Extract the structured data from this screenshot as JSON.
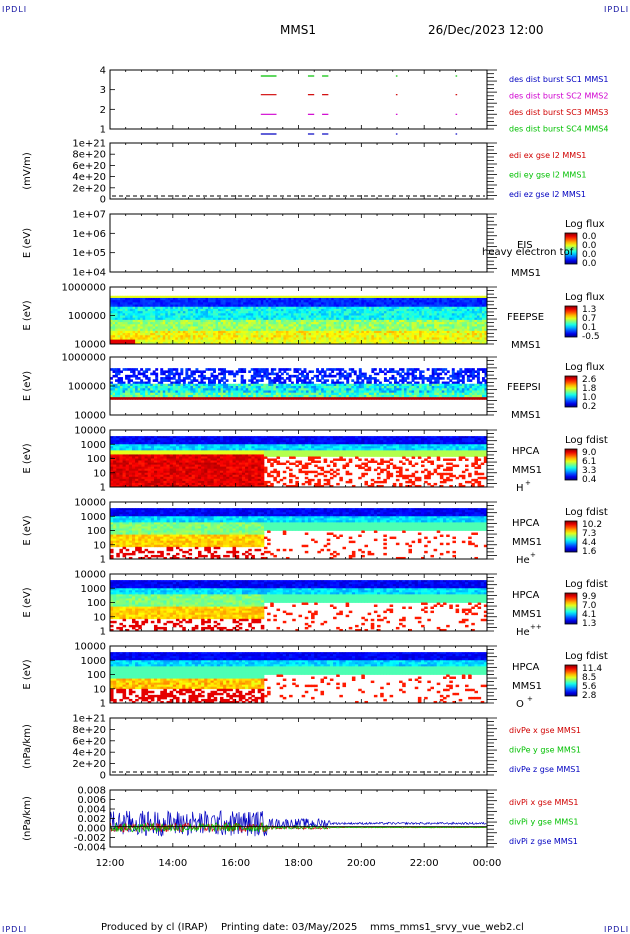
{
  "header": {
    "corner_tl": "IPDLI",
    "corner_tr": "IPDLI",
    "corner_bl": "IPDLI",
    "corner_br": "IPDLI",
    "spacecraft": "MMS1",
    "datetime": "26/Dec/2023 12:00"
  },
  "footer": {
    "produced_by": "Produced by cl (IRAP)",
    "printing_date": "Printing date: 03/May/2025",
    "script_name": "mms_mms1_srvy_vue_web2.cl"
  },
  "colors": {
    "red": "#d00000",
    "green": "#00c000",
    "blue": "#0000c0",
    "magenta": "#d000d0"
  },
  "chart_data": {
    "type": "heatmap",
    "x_axis": {
      "ticks": [
        "12:00",
        "14:00",
        "16:00",
        "18:00",
        "20:00",
        "22:00",
        "00:00"
      ],
      "range_hours": [
        12,
        24
      ]
    },
    "panels": [
      {
        "id": "burst",
        "type": "scatter",
        "yticks": [
          "4",
          "3",
          "2",
          "1"
        ],
        "legend": [
          {
            "text": "des dist burst SC1 MMS1",
            "color": "#0000c0"
          },
          {
            "text": "des dist burst SC2 MMS2",
            "color": "#d000d0"
          },
          {
            "text": "des dist burst SC3 MMS3",
            "color": "#d00000"
          },
          {
            "text": "des dist burst SC4 MMS4",
            "color": "#00c000"
          }
        ],
        "intervals_hours": [
          [
            16.8,
            17.3
          ],
          [
            18.3,
            18.5
          ],
          [
            18.75,
            18.95
          ],
          [
            21.1,
            21.15
          ],
          [
            23.0,
            23.05
          ]
        ]
      },
      {
        "id": "edi",
        "type": "line",
        "ylabel": "(mV/m)",
        "yticks": [
          "1e+21",
          "8e+20",
          "6e+20",
          "4e+20",
          "2e+20",
          "0"
        ],
        "legend": [
          {
            "text": "edi ex gse l2 MMS1",
            "color": "#d00000"
          },
          {
            "text": "edi ey gse l2 MMS1",
            "color": "#00c000"
          },
          {
            "text": "edi ez gse l2 MMS1",
            "color": "#0000c0"
          }
        ]
      },
      {
        "id": "eis",
        "type": "heatmap",
        "ylabel": "E (eV)",
        "yticks": [
          "1e+07",
          "1e+06",
          "1e+05",
          "1e+04"
        ],
        "labels": [
          "EIS",
          "heavy electron tof",
          "MMS1"
        ],
        "cbar_title": "Log flux",
        "cbar_ticks": [
          "0.0",
          "0.0",
          "0.0",
          "0.0"
        ]
      },
      {
        "id": "feepse",
        "type": "heatmap",
        "ylabel": "E (eV)",
        "yticks": [
          "1000000",
          "100000",
          "10000"
        ],
        "labels": [
          "FEEPSE",
          "MMS1"
        ],
        "cbar_title": "Log flux",
        "cbar_ticks": [
          "1.3",
          "0.7",
          "0.1",
          "-0.5"
        ]
      },
      {
        "id": "feepsi",
        "type": "heatmap",
        "ylabel": "E (eV)",
        "yticks": [
          "1000000",
          "100000",
          "10000"
        ],
        "labels": [
          "FEEPSI",
          "MMS1"
        ],
        "cbar_title": "Log flux",
        "cbar_ticks": [
          "2.6",
          "1.8",
          "1.0",
          "0.2"
        ]
      },
      {
        "id": "hpca_h",
        "type": "heatmap",
        "ylabel": "E (eV)",
        "yticks": [
          "10000",
          "1000",
          "100",
          "10",
          "1"
        ],
        "labels": [
          "HPCA",
          "MMS1",
          "H",
          "+"
        ],
        "cbar_title": "Log fdist",
        "cbar_ticks": [
          "9.0",
          "6.1",
          "3.3",
          "0.4"
        ]
      },
      {
        "id": "hpca_he",
        "type": "heatmap",
        "ylabel": "E (eV)",
        "yticks": [
          "10000",
          "1000",
          "100",
          "10",
          "1"
        ],
        "labels": [
          "HPCA",
          "MMS1",
          "He",
          "+"
        ],
        "cbar_title": "Log fdist",
        "cbar_ticks": [
          "10.2",
          "7.3",
          "4.4",
          "1.6"
        ]
      },
      {
        "id": "hpca_hepp",
        "type": "heatmap",
        "ylabel": "E (eV)",
        "yticks": [
          "10000",
          "1000",
          "100",
          "10",
          "1"
        ],
        "labels": [
          "HPCA",
          "MMS1",
          "He",
          "++"
        ],
        "cbar_title": "Log fdist",
        "cbar_ticks": [
          "9.9",
          "7.0",
          "4.1",
          "1.3"
        ]
      },
      {
        "id": "hpca_o",
        "type": "heatmap",
        "ylabel": "E (eV)",
        "yticks": [
          "10000",
          "1000",
          "100",
          "10",
          "1"
        ],
        "labels": [
          "HPCA",
          "MMS1",
          "O",
          "+"
        ],
        "cbar_title": "Log fdist",
        "cbar_ticks": [
          "11.4",
          "8.5",
          "5.6",
          "2.8"
        ]
      },
      {
        "id": "divpe",
        "type": "line",
        "ylabel": "(nPa/km)",
        "yticks": [
          "1e+21",
          "8e+20",
          "6e+20",
          "4e+20",
          "2e+20",
          "0"
        ],
        "legend": [
          {
            "text": "divPe x gse MMS1",
            "color": "#d00000"
          },
          {
            "text": "divPe y gse MMS1",
            "color": "#00c000"
          },
          {
            "text": "divPe z gse MMS1",
            "color": "#0000c0"
          }
        ]
      },
      {
        "id": "divpi",
        "type": "line",
        "ylabel": "(nPa/km)",
        "yticks": [
          "0.008",
          "0.006",
          "0.004",
          "0.002",
          "0.000",
          "-0.002",
          "-0.004"
        ],
        "ylim": [
          -0.005,
          0.009
        ],
        "legend": [
          {
            "text": "divPi x gse MMS1",
            "color": "#d00000"
          },
          {
            "text": "divPi y gse MMS1",
            "color": "#00c000"
          },
          {
            "text": "divPi z gse MMS1",
            "color": "#0000c0"
          }
        ]
      }
    ]
  }
}
